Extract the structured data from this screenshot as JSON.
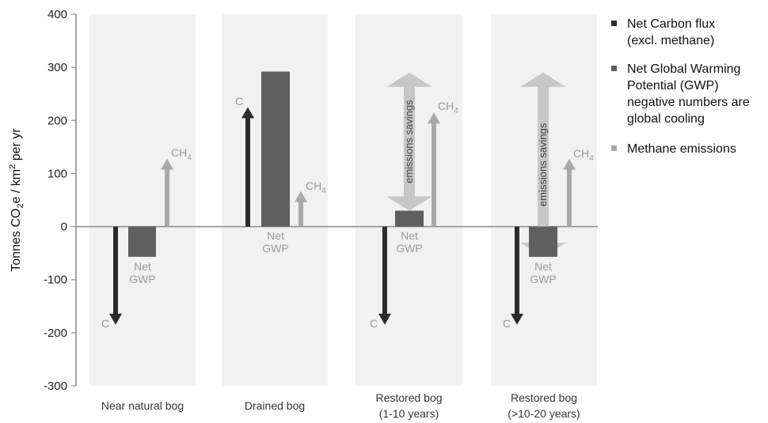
{
  "chart_data": {
    "type": "bar",
    "ylabel": {
      "prefix": "Tonnes CO",
      "sub": "2",
      "mid": "e / km",
      "sup": "2",
      "suffix": " per yr"
    },
    "ylim": [
      -300,
      400
    ],
    "yticks": [
      "400",
      "300",
      "200",
      "100",
      "0",
      "-100",
      "-200",
      "-300"
    ],
    "yticks_values": [
      400,
      300,
      200,
      100,
      0,
      -100,
      -200,
      -300
    ],
    "categories": [
      {
        "lines": [
          "Near natural bog"
        ]
      },
      {
        "lines": [
          "Drained bog"
        ]
      },
      {
        "lines": [
          "Restored bog",
          "(1-10 years)"
        ]
      },
      {
        "lines": [
          "Restored bog",
          "(>10-20 years)"
        ]
      }
    ],
    "series": [
      {
        "name": "Net Carbon flux (excl. methane)",
        "color": "#2b2b2b",
        "values": [
          -185,
          225,
          -185,
          -185
        ],
        "labels": [
          "C",
          "C",
          "C",
          "C"
        ]
      },
      {
        "name": "Net Global Warming Potential (GWP) negative numbers are global cooling",
        "color": "#5f5f5f",
        "values": [
          -57,
          292,
          30,
          -57
        ],
        "labels": [
          "Net GWP",
          "Net GWP",
          "Net GWP",
          "Net GWP"
        ]
      },
      {
        "name": "Methane emissions",
        "color": "#a9a9a9",
        "values": [
          128,
          67,
          215,
          128
        ],
        "labels": [
          "CH4",
          "CH4",
          "CH4",
          "CH4"
        ]
      }
    ],
    "net_label": [
      "Net",
      "GWP"
    ],
    "ch4_label": {
      "main": "CH",
      "sub": "4"
    },
    "c_label": "C",
    "savings_label": "emissions savings",
    "savings_arrows": [
      {
        "category_index": 2,
        "from": 30,
        "to": 290
      },
      {
        "category_index": 3,
        "from": -57,
        "to": 290
      }
    ],
    "legend": {
      "position": "right",
      "entries": [
        {
          "color": "#2b2b2b",
          "lines": [
            "Net Carbon flux",
            "(excl. methane)"
          ]
        },
        {
          "color": "#5f5f5f",
          "lines": [
            "Net Global Warming",
            "Potential (GWP)",
            "negative numbers are",
            "global cooling"
          ]
        },
        {
          "color": "#a9a9a9",
          "lines": [
            "Methane emissions"
          ]
        }
      ]
    },
    "colors": {
      "background_band": "#f1f1f1",
      "axis": "#8a8a8a",
      "zero_line": "#8a8a8a",
      "savings_arrow": "#c4c4c4"
    }
  }
}
